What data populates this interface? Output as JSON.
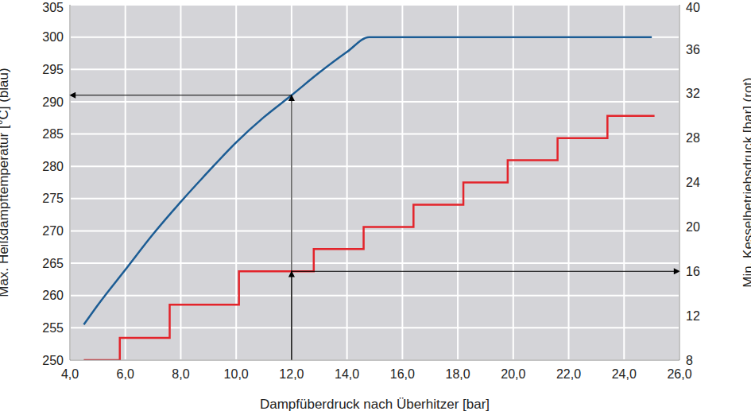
{
  "chart_data": {
    "type": "line",
    "x_label": "Dampfüberdruck nach Überhitzer [bar]",
    "y_label": "Max. Heißdampftemperatur [°C] (blau)",
    "y2_label": "Min. Kesselbetriebsdruck [bar] (rot)",
    "xlim": [
      4,
      26
    ],
    "xticks": [
      {
        "value": 4,
        "label": "4,0"
      },
      {
        "value": 6,
        "label": "6,0"
      },
      {
        "value": 8,
        "label": "8,0"
      },
      {
        "value": 10,
        "label": "10,0"
      },
      {
        "value": 12,
        "label": "12,0"
      },
      {
        "value": 14,
        "label": "14,0"
      },
      {
        "value": 16,
        "label": "16,0"
      },
      {
        "value": 18,
        "label": "18,0"
      },
      {
        "value": 20,
        "label": "20,0"
      },
      {
        "value": 22,
        "label": "22,0"
      },
      {
        "value": 24,
        "label": "24,0"
      },
      {
        "value": 26,
        "label": "26,0"
      }
    ],
    "ylim": [
      250,
      305
    ],
    "yticks": [
      250,
      255,
      260,
      265,
      270,
      275,
      280,
      285,
      290,
      295,
      300,
      305
    ],
    "y2lim": [
      8,
      40
    ],
    "y2ticks": [
      8,
      12,
      16,
      20,
      24,
      28,
      32,
      36,
      40
    ],
    "grid": true,
    "series": [
      {
        "color": "#1b5c94",
        "line_style": "solid",
        "x": [
          4.5,
          5,
          6,
          7,
          8,
          9,
          10,
          11,
          12,
          13,
          14,
          14.8,
          25
        ],
        "values": [
          255.5,
          258.5,
          264,
          269.5,
          274.5,
          279.2,
          283.7,
          287.6,
          291,
          294.5,
          297.7,
          300,
          300
        ]
      },
      {
        "color": "#e3242b",
        "line_style": "step",
        "axis": "y2",
        "x": [
          4.5,
          5.8,
          7.6,
          10.1,
          12.8,
          14.6,
          16.4,
          18.2,
          19.8,
          21.6,
          23.4,
          25.1
        ],
        "values": [
          8,
          10,
          13,
          16,
          18,
          20,
          22,
          24,
          26,
          28,
          30,
          30
        ]
      }
    ],
    "arrows": [
      {
        "from": [
          12,
          250
        ],
        "to": [
          12,
          291
        ]
      },
      {
        "from": [
          12,
          291
        ],
        "to": [
          4,
          291
        ]
      },
      {
        "from": [
          12,
          8
        ],
        "to": [
          12,
          16
        ],
        "axis": "y2"
      },
      {
        "from": [
          12,
          16
        ],
        "to": [
          26,
          16
        ],
        "axis": "y2"
      }
    ]
  }
}
